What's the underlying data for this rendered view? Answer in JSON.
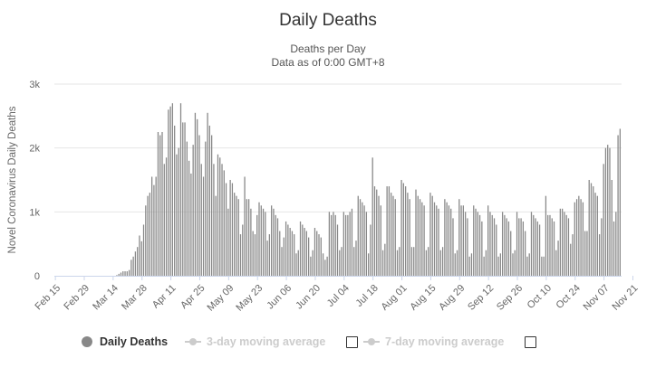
{
  "chart_data": {
    "type": "bar",
    "title": "Daily Deaths",
    "subtitle": [
      "Deaths per Day",
      "Data as of 0:00 GMT+8"
    ],
    "ylabel": "Novel Coronavirus Daily Deaths",
    "ylim": [
      0,
      3000
    ],
    "yticks": [
      0,
      1000,
      2000,
      3000
    ],
    "ytick_labels": [
      "0",
      "1k",
      "2k",
      "3k"
    ],
    "grid": true,
    "bar_color": "#888888",
    "x_start": "Feb 15",
    "xtick_labels": [
      "Feb 15",
      "Feb 29",
      "Mar 14",
      "Mar 28",
      "Apr 11",
      "Apr 25",
      "May 09",
      "May 23",
      "Jun 06",
      "Jun 20",
      "Jul 04",
      "Jul 18",
      "Aug 01",
      "Aug 15",
      "Aug 29",
      "Sep 12",
      "Sep 26",
      "Oct 10",
      "Oct 24",
      "Nov 07",
      "Nov 21"
    ],
    "legend": [
      "Daily Deaths",
      "3-day moving average",
      "7-day moving average"
    ],
    "values": [
      0,
      0,
      0,
      0,
      0,
      0,
      0,
      0,
      0,
      0,
      0,
      0,
      0,
      0,
      0,
      0,
      0,
      0,
      0,
      0,
      0,
      0,
      0,
      0,
      0,
      0,
      0,
      0,
      0,
      0,
      10,
      30,
      50,
      70,
      70,
      70,
      90,
      250,
      300,
      380,
      450,
      630,
      540,
      800,
      1100,
      1250,
      1300,
      1550,
      1420,
      1550,
      2250,
      2200,
      2250,
      1750,
      1850,
      2600,
      2650,
      2700,
      2350,
      1900,
      2000,
      2700,
      2400,
      2400,
      2100,
      1800,
      1600,
      2050,
      2550,
      2450,
      2200,
      1750,
      1550,
      2100,
      2550,
      2350,
      2200,
      1750,
      1250,
      1900,
      1850,
      1750,
      1650,
      1450,
      1050,
      1500,
      1450,
      1300,
      1250,
      1200,
      650,
      800,
      1550,
      1200,
      1200,
      1050,
      700,
      650,
      950,
      1150,
      1100,
      1050,
      1000,
      550,
      650,
      1100,
      1050,
      950,
      900,
      700,
      450,
      600,
      850,
      800,
      750,
      700,
      650,
      350,
      400,
      850,
      800,
      750,
      700,
      600,
      300,
      400,
      750,
      700,
      650,
      600,
      350,
      250,
      300,
      1000,
      950,
      1000,
      950,
      800,
      400,
      450,
      1000,
      950,
      950,
      1000,
      1050,
      450,
      550,
      1250,
      1200,
      1150,
      1100,
      1000,
      350,
      800,
      1850,
      1400,
      1350,
      1250,
      1100,
      400,
      500,
      1400,
      1400,
      1300,
      1250,
      1200,
      400,
      450,
      1500,
      1450,
      1400,
      1300,
      1200,
      450,
      450,
      1350,
      1250,
      1200,
      1150,
      1100,
      400,
      450,
      1300,
      1250,
      1150,
      1100,
      1050,
      400,
      450,
      1200,
      1150,
      1100,
      1050,
      900,
      350,
      400,
      1200,
      1100,
      1100,
      1000,
      900,
      300,
      350,
      1100,
      1050,
      1000,
      950,
      850,
      300,
      400,
      1100,
      1000,
      950,
      900,
      800,
      300,
      350,
      1000,
      950,
      900,
      850,
      700,
      350,
      400,
      1000,
      900,
      900,
      850,
      700,
      300,
      350,
      1000,
      950,
      900,
      850,
      800,
      300,
      300,
      1250,
      950,
      950,
      900,
      850,
      400,
      550,
      1050,
      1050,
      1000,
      950,
      900,
      500,
      650,
      1150,
      1200,
      1250,
      1200,
      1150,
      700,
      700,
      1500,
      1450,
      1400,
      1300,
      1250,
      650,
      900,
      1750,
      2000,
      2050,
      2000,
      1500,
      850,
      1000,
      2200,
      2300
    ]
  },
  "legend_labels": {
    "daily": "Daily Deaths",
    "avg3": "3-day moving average",
    "avg7": "7-day moving average"
  },
  "colors": {
    "bar": "#888888",
    "grid": "#e6e6e6",
    "axis": "#ccd6eb",
    "text": "#333333",
    "muted": "#cccccc"
  }
}
